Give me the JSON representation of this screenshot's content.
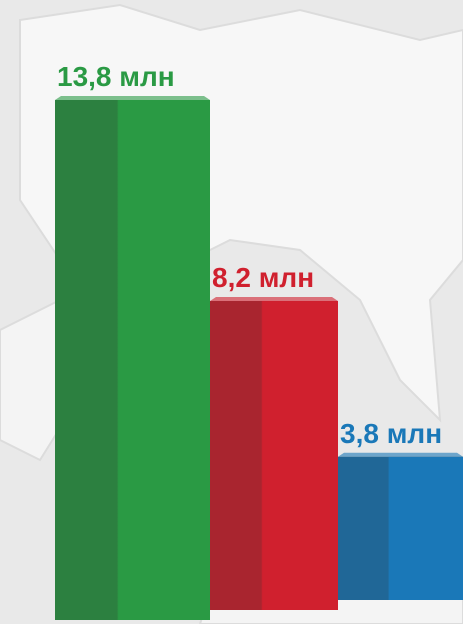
{
  "chart_data": {
    "type": "bar",
    "categories": [
      null,
      null,
      null
    ],
    "values": [
      13.8,
      8.2,
      3.8
    ],
    "value_labels": [
      "13,8 млн",
      "8,2 млн",
      "3,8 млн"
    ],
    "colors": [
      "#2a9a44",
      "#d0202e",
      "#1a78b8"
    ]
  }
}
